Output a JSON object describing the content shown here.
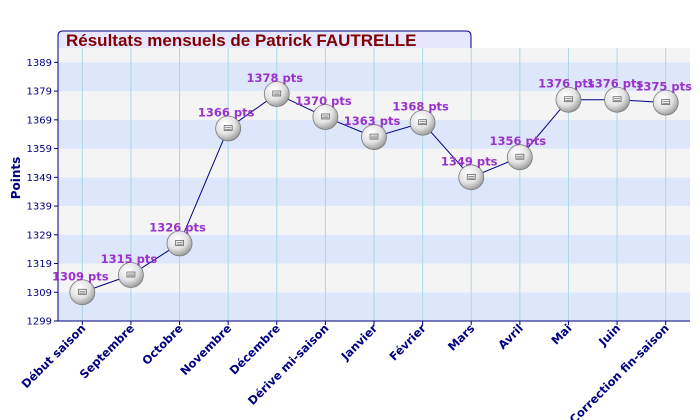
{
  "colors": {
    "title_text": "#800000",
    "title_bg": "#e6e6ff",
    "axis_text": "#000080",
    "data_label": "#9933cc",
    "band_blue": "#dde6fb",
    "band_light": "#f4f4f4",
    "grid_vertical": "#a8d8e8",
    "line": "#000080"
  },
  "chart_data": {
    "type": "line",
    "title": "Résultats mensuels de  Patrick FAUTRELLE",
    "xlabel": "",
    "ylabel": "Points",
    "ylim": [
      1299,
      1394
    ],
    "yticks": [
      1299,
      1309,
      1319,
      1329,
      1339,
      1349,
      1359,
      1369,
      1379,
      1389
    ],
    "grid": true,
    "legend": "none",
    "marker": "ping-pong-ball",
    "categories": [
      "Début saison",
      "Septembre",
      "Octobre",
      "Novembre",
      "Décembre",
      "Dérive mi-saison",
      "Janvier",
      "Février",
      "Mars",
      "Avril",
      "Mai",
      "Juin",
      "Correction fin-saison"
    ],
    "values": [
      1309,
      1315,
      1326,
      1366,
      1378,
      1370,
      1363,
      1368,
      1349,
      1356,
      1376,
      1376,
      1375
    ],
    "data_labels": [
      "1309 pts",
      "1315 pts",
      "1326 pts",
      "1366 pts",
      "1378 pts",
      "1370 pts",
      "1363 pts",
      "1368 pts",
      "1349 pts",
      "1356 pts",
      "1376 pts",
      "1376 pts",
      "1375 pts"
    ]
  }
}
